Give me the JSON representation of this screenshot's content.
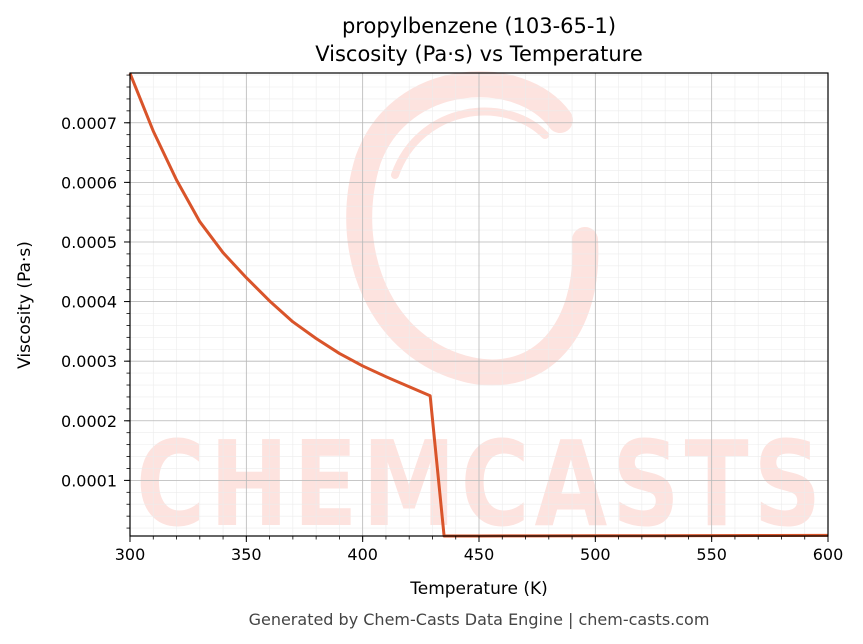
{
  "chart_data": {
    "type": "line",
    "title": "propylbenzene (103-65-1)",
    "subtitle": "Viscosity (Pa·s) vs Temperature",
    "xlabel": "Temperature (K)",
    "ylabel": "Viscosity (Pa·s)",
    "xlim": [
      300,
      600
    ],
    "ylim": [
      6.7e-06,
      0.0007835
    ],
    "x_ticks": [
      300,
      350,
      400,
      450,
      500,
      550,
      600
    ],
    "y_ticks": [
      0.0001,
      0.0002,
      0.0003,
      0.0004,
      0.0005,
      0.0006,
      0.0007
    ],
    "y_tick_labels": [
      "0.0001",
      "0.0002",
      "0.0003",
      "0.0004",
      "0.0005",
      "0.0006",
      "0.0007"
    ],
    "grid": true,
    "line_color": "#d9542a",
    "series": [
      {
        "x": [
          300,
          310,
          320,
          330,
          340,
          350,
          360,
          370,
          380,
          390,
          400,
          410,
          420,
          429,
          435,
          440,
          450,
          475,
          500,
          525,
          550,
          575,
          600
        ],
        "y": [
          0.000783,
          0.000686,
          0.000604,
          0.000534,
          0.000482,
          0.00044,
          0.000401,
          0.000366,
          0.000338,
          0.000313,
          0.000292,
          0.000274,
          0.000257,
          0.000242,
          6.7e-06,
          6.7e-06,
          6.8e-06,
          7e-06,
          7.1e-06,
          7.2e-06,
          7.3e-06,
          7.5e-06,
          7.8e-06
        ]
      }
    ]
  },
  "watermark": {
    "text": "CHEMCASTS",
    "color": "#fde3df"
  },
  "footer": "Generated by Chem-Casts Data Engine | chem-casts.com"
}
